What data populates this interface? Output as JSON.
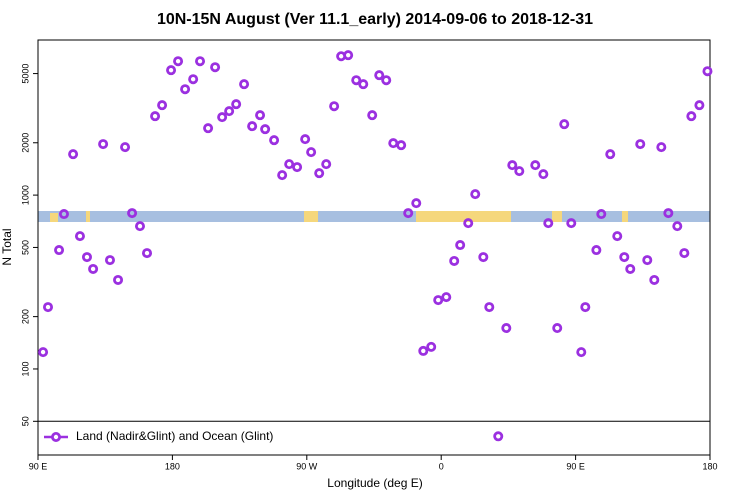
{
  "chart_data": {
    "type": "scatter",
    "title": "10N-15N August (Ver 11.1_early)   2014-09-06 to 2018-12-31",
    "x_label": "Longitude (deg E)",
    "y_label": "N Total",
    "log_y": true,
    "legend": "bottom-left",
    "xlim": [
      90,
      540
    ],
    "ylim": [
      32,
      7800
    ],
    "xticks": [
      {
        "value": 90,
        "label": "90 E"
      },
      180,
      {
        "value": 270,
        "label": "90 W"
      },
      {
        "value": 360,
        "label": "0"
      },
      {
        "value": 450,
        "label": "90 E"
      },
      {
        "value": 540,
        "label": "180"
      }
    ],
    "yticks": [
      50,
      100,
      200,
      500,
      1000,
      2000,
      5000
    ],
    "series": [
      {
        "name": "Land (Nadir&Glint) and Ocean (Glint)",
        "color": "#9b30e0",
        "x": [
          93.4,
          96.7,
          104.1,
          107.4,
          113.5,
          118.1,
          122.8,
          126.9,
          133.6,
          138.2,
          143.6,
          148.3,
          153,
          158.3,
          163,
          168.4,
          173.1,
          179.1,
          183.8,
          188.5,
          193.9,
          198.5,
          203.9,
          208.6,
          213.3,
          218,
          222.7,
          228,
          233.4,
          238.7,
          242.1,
          248.1,
          253.5,
          258.2,
          263.5,
          268.9,
          272.9,
          278.3,
          283,
          288.3,
          293,
          297.7,
          303.1,
          307.8,
          313.8,
          318.5,
          323.2,
          327.9,
          333.2,
          337.9,
          343.3,
          348,
          353.3,
          358,
          363.4,
          368.7,
          372.7,
          378.1,
          382.8,
          388.2,
          392.2,
          398.2,
          403.6,
          407.6,
          412.3,
          423,
          428.4,
          431.7,
          437.7,
          442.4,
          447.1,
          453.8,
          456.5,
          463.9,
          467.2,
          473.2,
          477.9,
          482.6,
          486.6,
          493.3,
          498,
          502.7,
          507.4,
          512.1,
          518.1,
          522.8,
          527.5,
          532.9,
          538.3
        ],
        "values": [
          125,
          227,
          483,
          778,
          1720,
          581,
          440,
          376,
          1965,
          423,
          325,
          1888,
          788,
          663,
          464,
          2845,
          3290,
          5230,
          5890,
          4065,
          4640,
          5890,
          2427,
          5440,
          2808,
          3040,
          3335,
          4345,
          2492,
          2882,
          2395,
          2070,
          1303,
          1507,
          1449,
          2098,
          1767,
          1337,
          1507,
          3245,
          6290,
          6380,
          4580,
          4345,
          2882,
          4895,
          4580,
          1990,
          1937,
          788,
          899,
          127,
          134,
          249,
          259,
          418,
          516,
          690,
          1013,
          440,
          227,
          41,
          172,
          1487,
          1374,
          1487,
          1320,
          690,
          172,
          2558,
          690,
          125,
          227,
          483,
          778,
          1720,
          581,
          440,
          376,
          1965,
          423,
          325,
          1888,
          788,
          663,
          464,
          2845,
          3290,
          5160
        ]
      }
    ]
  }
}
